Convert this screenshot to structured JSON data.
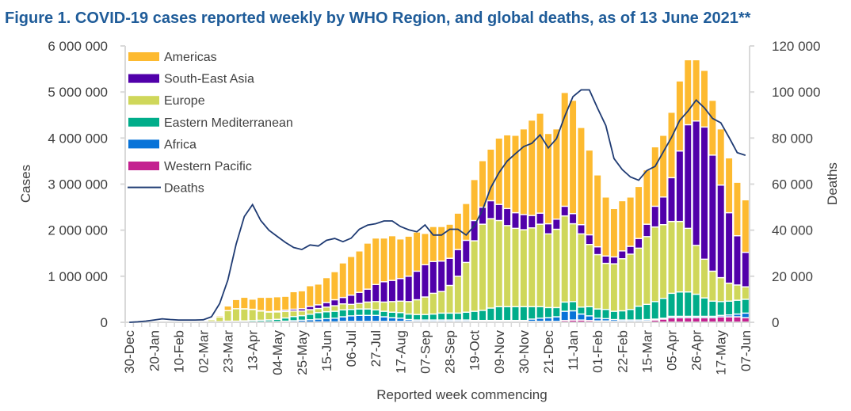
{
  "chart_data": {
    "type": "bar",
    "stacked": true,
    "title": "Figure 1. COVID-19 cases reported weekly by WHO Region, and global deaths, as of 13 June 2021**",
    "xlabel": "Reported week commencing",
    "ylabel": "Cases",
    "y2label": "Deaths",
    "ylim": [
      0,
      6000000
    ],
    "y2lim": [
      0,
      120000
    ],
    "yticks": [
      "0",
      "1 000 000",
      "2 000 000",
      "3 000 000",
      "4 000 000",
      "5 000 000",
      "6 000 000"
    ],
    "y2ticks": [
      "0",
      "20 000",
      "40 000",
      "60 000",
      "80 000",
      "100 000",
      "120 000"
    ],
    "x_tick_labels": [
      "30-Dec",
      "20-Jan",
      "10-Feb",
      "02-Mar",
      "23-Mar",
      "13-Apr",
      "04-May",
      "25-May",
      "15-Jun",
      "06-Jul",
      "27-Jul",
      "17-Aug",
      "07-Sep",
      "28-Sep",
      "19-Oct",
      "09-Nov",
      "30-Nov",
      "21-Dec",
      "11-Jan",
      "01-Feb",
      "22-Feb",
      "15-Mar",
      "05-Apr",
      "26-Apr",
      "17-May",
      "07-Jun"
    ],
    "weeks": 76,
    "legend_position": "top-left",
    "grid": false,
    "series": [
      {
        "name": "Americas",
        "color": "#FDBA30",
        "values": [
          0,
          0,
          0,
          0,
          0,
          0,
          0,
          0,
          0,
          2000,
          10000,
          30000,
          100000,
          200000,
          250000,
          220000,
          290000,
          310000,
          310000,
          300000,
          380000,
          390000,
          450000,
          450000,
          540000,
          610000,
          750000,
          840000,
          900000,
          1000000,
          1010000,
          950000,
          970000,
          860000,
          870000,
          850000,
          680000,
          760000,
          750000,
          740000,
          790000,
          800000,
          890000,
          1010000,
          1120000,
          1440000,
          1600000,
          1680000,
          1860000,
          2070000,
          2170000,
          1960000,
          1960000,
          2470000,
          2460000,
          2110000,
          1840000,
          1560000,
          1280000,
          1050000,
          1090000,
          1070000,
          1130000,
          1180000,
          1290000,
          1340000,
          1420000,
          1520000,
          1410000,
          1330000,
          1230000,
          1190000,
          1220000,
          1190000,
          1160000,
          1140000
        ]
      },
      {
        "name": "South-East Asia",
        "color": "#5100AA",
        "values": [
          0,
          0,
          0,
          0,
          0,
          0,
          0,
          0,
          0,
          0,
          0,
          0,
          0,
          0,
          2000,
          5000,
          8000,
          10000,
          20000,
          30000,
          40000,
          50000,
          70000,
          80000,
          100000,
          130000,
          140000,
          200000,
          240000,
          280000,
          370000,
          440000,
          460000,
          490000,
          550000,
          620000,
          700000,
          690000,
          660000,
          590000,
          580000,
          480000,
          440000,
          370000,
          390000,
          350000,
          370000,
          340000,
          330000,
          270000,
          240000,
          220000,
          220000,
          210000,
          220000,
          200000,
          210000,
          170000,
          160000,
          150000,
          170000,
          170000,
          210000,
          270000,
          450000,
          600000,
          950000,
          1530000,
          2250000,
          2700000,
          2870000,
          2520000,
          2010000,
          1530000,
          1070000,
          750000
        ]
      },
      {
        "name": "Europe",
        "color": "#CFD75A",
        "values": [
          0,
          0,
          0,
          0,
          0,
          0,
          0,
          0,
          10000,
          15000,
          40000,
          100000,
          230000,
          270000,
          260000,
          240000,
          200000,
          170000,
          160000,
          140000,
          120000,
          100000,
          100000,
          90000,
          100000,
          120000,
          130000,
          110000,
          120000,
          150000,
          180000,
          200000,
          230000,
          250000,
          270000,
          320000,
          380000,
          450000,
          470000,
          600000,
          800000,
          1080000,
          1530000,
          1870000,
          1940000,
          1870000,
          1760000,
          1700000,
          1670000,
          1710000,
          1790000,
          1600000,
          1700000,
          1870000,
          1690000,
          1590000,
          1350000,
          1180000,
          1000000,
          1030000,
          1130000,
          1200000,
          1260000,
          1470000,
          1620000,
          1600000,
          1560000,
          1530000,
          1380000,
          1060000,
          840000,
          650000,
          520000,
          390000,
          330000,
          270000
        ]
      },
      {
        "name": "Eastern Mediterranean",
        "color": "#00AD8A",
        "values": [
          0,
          0,
          0,
          0,
          0,
          0,
          0,
          2000,
          5000,
          5000,
          10000,
          10000,
          20000,
          20000,
          25000,
          30000,
          35000,
          40000,
          50000,
          70000,
          90000,
          100000,
          120000,
          140000,
          150000,
          150000,
          150000,
          140000,
          140000,
          140000,
          120000,
          120000,
          120000,
          120000,
          120000,
          120000,
          120000,
          130000,
          150000,
          150000,
          150000,
          170000,
          200000,
          220000,
          270000,
          300000,
          300000,
          300000,
          300000,
          270000,
          250000,
          220000,
          200000,
          200000,
          200000,
          150000,
          200000,
          200000,
          200000,
          180000,
          200000,
          230000,
          300000,
          330000,
          380000,
          430000,
          500000,
          530000,
          530000,
          480000,
          400000,
          330000,
          300000,
          300000,
          300000,
          300000
        ]
      },
      {
        "name": "Africa",
        "color": "#0873D8",
        "values": [
          0,
          0,
          0,
          0,
          0,
          0,
          0,
          0,
          0,
          0,
          0,
          0,
          0,
          0,
          2000,
          3000,
          5000,
          8000,
          10000,
          20000,
          30000,
          40000,
          50000,
          60000,
          70000,
          80000,
          100000,
          120000,
          130000,
          130000,
          130000,
          100000,
          80000,
          70000,
          40000,
          30000,
          30000,
          30000,
          30000,
          30000,
          30000,
          30000,
          20000,
          20000,
          20000,
          20000,
          20000,
          20000,
          20000,
          50000,
          70000,
          80000,
          100000,
          200000,
          200000,
          130000,
          100000,
          60000,
          50000,
          40000,
          30000,
          30000,
          30000,
          30000,
          20000,
          20000,
          30000,
          30000,
          30000,
          30000,
          30000,
          30000,
          30000,
          40000,
          60000,
          100000
        ]
      },
      {
        "name": "Western Pacific",
        "color": "#C42190",
        "values": [
          0,
          5000,
          10000,
          15000,
          20000,
          15000,
          10000,
          10000,
          10000,
          8000,
          5000,
          5000,
          5000,
          5000,
          5000,
          5000,
          5000,
          5000,
          5000,
          5000,
          5000,
          5000,
          5000,
          10000,
          10000,
          10000,
          20000,
          20000,
          20000,
          20000,
          20000,
          20000,
          20000,
          20000,
          20000,
          20000,
          20000,
          20000,
          20000,
          20000,
          20000,
          20000,
          20000,
          20000,
          20000,
          20000,
          20000,
          20000,
          20000,
          20000,
          20000,
          20000,
          20000,
          40000,
          50000,
          50000,
          40000,
          30000,
          30000,
          20000,
          20000,
          20000,
          20000,
          30000,
          50000,
          70000,
          100000,
          100000,
          100000,
          100000,
          100000,
          100000,
          120000,
          120000,
          120000,
          100000
        ]
      }
    ],
    "line_series": {
      "name": "Deaths",
      "color": "#1F3B73",
      "axis": "right",
      "values": [
        0,
        200,
        500,
        1000,
        1500,
        1200,
        1000,
        1000,
        1000,
        1100,
        2400,
        8100,
        18400,
        33900,
        45900,
        51100,
        44200,
        40000,
        37300,
        34700,
        32500,
        31600,
        33600,
        33100,
        35600,
        36400,
        35000,
        36500,
        40400,
        42200,
        42800,
        44000,
        44000,
        41600,
        40200,
        39300,
        42300,
        37900,
        37900,
        40400,
        40400,
        37900,
        41900,
        48800,
        58500,
        65000,
        70000,
        73200,
        76300,
        77700,
        81400,
        75700,
        79700,
        89400,
        98000,
        100900,
        100900,
        92900,
        85400,
        71100,
        66300,
        63100,
        61700,
        65900,
        67700,
        74000,
        80300,
        87700,
        91700,
        96500,
        93100,
        88500,
        86600,
        80300,
        73700,
        72500
      ]
    }
  }
}
